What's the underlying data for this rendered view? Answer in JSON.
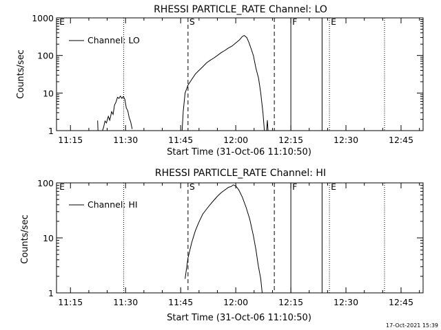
{
  "chart_data": [
    {
      "type": "line",
      "title": "RHESSI PARTICLE_RATE Channel: LO",
      "xlabel": "Start Time (31-Oct-06 11:10:50)",
      "ylabel": "Counts/sec",
      "yscale": "log",
      "ylim": [
        1,
        1000
      ],
      "yticks": [
        1,
        10,
        100,
        1000
      ],
      "xlim_minutes": [
        11.2,
        111.0
      ],
      "xticks": [
        "11:15",
        "11:30",
        "11:45",
        "12:00",
        "12:15",
        "12:30",
        "12:45"
      ],
      "xtick_minutes": [
        15,
        30,
        45,
        60,
        75,
        90,
        105
      ],
      "legend": "Channel: LO",
      "legend_position": "top-left",
      "markers": [
        {
          "label": "",
          "minute": 29.5,
          "style": "dotted"
        },
        {
          "label": "S",
          "minute": 47.0,
          "style": "dashed"
        },
        {
          "label": "",
          "minute": 70.5,
          "style": "dashed"
        },
        {
          "label": "F",
          "minute": 75.0,
          "style": "solid"
        },
        {
          "label": "",
          "minute": 83.5,
          "style": "solid"
        },
        {
          "label": "E",
          "minute": 85.5,
          "style": "dotted"
        },
        {
          "label": "",
          "minute": 100.5,
          "style": "dotted"
        },
        {
          "label": "E",
          "minute": 11.6,
          "style": "none"
        }
      ],
      "series": [
        {
          "name": "Channel: LO",
          "segments": [
            [
              [
                22.4,
                1.85
              ],
              [
                22.5,
                1
              ]
            ],
            [
              [
                23.7,
                1
              ],
              [
                24.0,
                1.2
              ],
              [
                24.4,
                1.8
              ],
              [
                24.8,
                1.6
              ],
              [
                25.3,
                2.4
              ],
              [
                25.7,
                1.9
              ],
              [
                26.2,
                3.2
              ],
              [
                26.6,
                2.7
              ],
              [
                27.0,
                4.8
              ],
              [
                27.4,
                5.8
              ],
              [
                27.8,
                7.7
              ],
              [
                28.2,
                7.2
              ],
              [
                28.6,
                8.3
              ],
              [
                29.0,
                7.2
              ],
              [
                29.4,
                8.1
              ],
              [
                29.8,
                6.8
              ],
              [
                30.2,
                4.0
              ],
              [
                30.6,
                3.4
              ],
              [
                31.0,
                2.2
              ],
              [
                31.4,
                1.7
              ],
              [
                31.8,
                1.1
              ]
            ],
            [
              [
                45.4,
                1
              ],
              [
                45.7,
                3.2
              ],
              [
                46.2,
                10
              ],
              [
                47.0,
                16.2
              ],
              [
                48.0,
                23
              ],
              [
                49.0,
                32
              ],
              [
                50.0,
                40
              ],
              [
                51.0,
                50
              ],
              [
                52.0,
                63
              ],
              [
                53.0,
                74
              ],
              [
                54.0,
                85
              ],
              [
                55.0,
                100
              ],
              [
                56.0,
                118
              ],
              [
                57.0,
                135
              ],
              [
                58.0,
                158
              ],
              [
                59.0,
                178
              ],
              [
                60.0,
                215
              ],
              [
                61.0,
                260
              ],
              [
                61.8,
                320
              ],
              [
                62.3,
                340
              ],
              [
                63.0,
                300
              ],
              [
                63.6,
                220
              ],
              [
                64.2,
                150
              ],
              [
                64.8,
                100
              ],
              [
                65.5,
                45
              ],
              [
                66.2,
                25
              ],
              [
                66.8,
                10
              ],
              [
                67.4,
                3
              ],
              [
                67.8,
                1
              ]
            ],
            [
              [
                68.4,
                1
              ],
              [
                68.6,
                1.9
              ],
              [
                68.8,
                1
              ]
            ]
          ]
        }
      ]
    },
    {
      "type": "line",
      "title": "RHESSI PARTICLE_RATE Channel: HI",
      "xlabel": "Start Time (31-Oct-06 11:10:50)",
      "ylabel": "Counts/sec",
      "yscale": "log",
      "ylim": [
        1,
        100
      ],
      "yticks": [
        1,
        10,
        100
      ],
      "xlim_minutes": [
        11.2,
        111.0
      ],
      "xticks": [
        "11:15",
        "11:30",
        "11:45",
        "12:00",
        "12:15",
        "12:30",
        "12:45"
      ],
      "xtick_minutes": [
        15,
        30,
        45,
        60,
        75,
        90,
        105
      ],
      "legend": "Channel: HI",
      "legend_position": "top-left",
      "markers": [
        {
          "label": "",
          "minute": 29.5,
          "style": "dotted"
        },
        {
          "label": "S",
          "minute": 47.0,
          "style": "dashed"
        },
        {
          "label": "",
          "minute": 70.5,
          "style": "dashed"
        },
        {
          "label": "F",
          "minute": 75.0,
          "style": "solid"
        },
        {
          "label": "",
          "minute": 83.5,
          "style": "solid"
        },
        {
          "label": "E",
          "minute": 85.5,
          "style": "dotted"
        },
        {
          "label": "",
          "minute": 100.5,
          "style": "dotted"
        },
        {
          "label": "E",
          "minute": 11.6,
          "style": "none"
        }
      ],
      "series": [
        {
          "name": "Channel: HI",
          "segments": [
            [
              [
                46.2,
                1.8
              ],
              [
                46.5,
                2.5
              ],
              [
                47.0,
                4.3
              ],
              [
                48.0,
                8.2
              ],
              [
                49.0,
                13.5
              ],
              [
                50.0,
                19.5
              ],
              [
                51.0,
                27
              ],
              [
                52.0,
                33
              ],
              [
                53.0,
                40
              ],
              [
                54.0,
                48
              ],
              [
                55.0,
                57
              ],
              [
                56.0,
                66
              ],
              [
                57.0,
                74
              ],
              [
                58.0,
                83
              ],
              [
                58.8,
                86
              ],
              [
                59.3,
                92
              ],
              [
                60.0,
                88
              ],
              [
                60.8,
                75
              ],
              [
                61.8,
                55
              ],
              [
                62.8,
                36
              ],
              [
                63.8,
                22
              ],
              [
                64.8,
                11
              ],
              [
                65.5,
                6
              ],
              [
                66.1,
                3.2
              ],
              [
                66.8,
                1.8
              ],
              [
                67.2,
                1
              ]
            ]
          ]
        }
      ]
    }
  ],
  "footer_timestamp": "17-Oct-2021 15:39"
}
